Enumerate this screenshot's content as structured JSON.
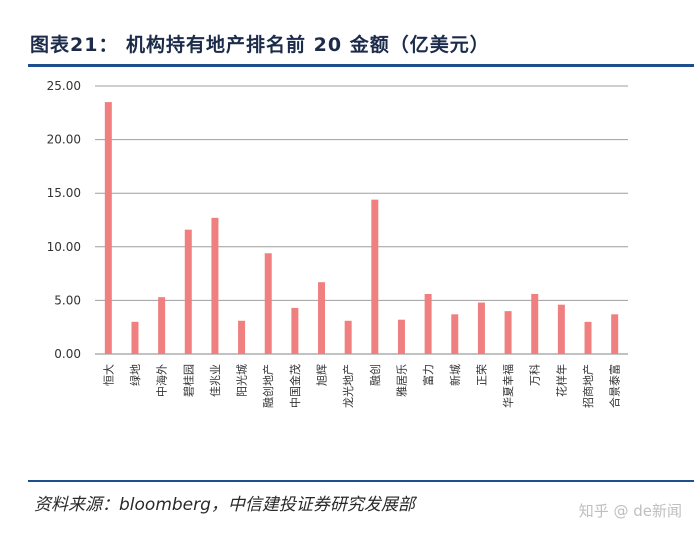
{
  "title": "图表21：  机构持有地产排名前 20 金额（亿美元）",
  "source": "资料来源：bloomberg，中信建投证券研究发展部",
  "watermark": "知乎 @ de新闻",
  "colors": {
    "bar": "#f08080",
    "grid": "#9e9e9e",
    "rule": "#1f4e8c"
  },
  "chart_data": {
    "type": "bar",
    "categories": [
      "恒大",
      "绿地",
      "中海外",
      "碧桂园",
      "佳兆业",
      "阳光城",
      "融创地产",
      "中国金茂",
      "旭辉",
      "龙光地产",
      "融创",
      "雅居乐",
      "富力",
      "新城",
      "正荣",
      "华夏幸福",
      "万科",
      "花样年",
      "招商地产",
      "合景泰富"
    ],
    "values": [
      23.5,
      3.0,
      5.3,
      11.6,
      12.7,
      3.1,
      9.4,
      4.3,
      6.7,
      3.1,
      14.4,
      3.2,
      5.6,
      3.7,
      4.8,
      4.0,
      5.6,
      4.6,
      3.0,
      3.7
    ],
    "ylim": [
      0,
      25
    ],
    "yticks": [
      "0.00",
      "5.00",
      "10.00",
      "15.00",
      "20.00",
      "25.00"
    ],
    "grid": true,
    "xlabel": "",
    "ylabel": ""
  }
}
